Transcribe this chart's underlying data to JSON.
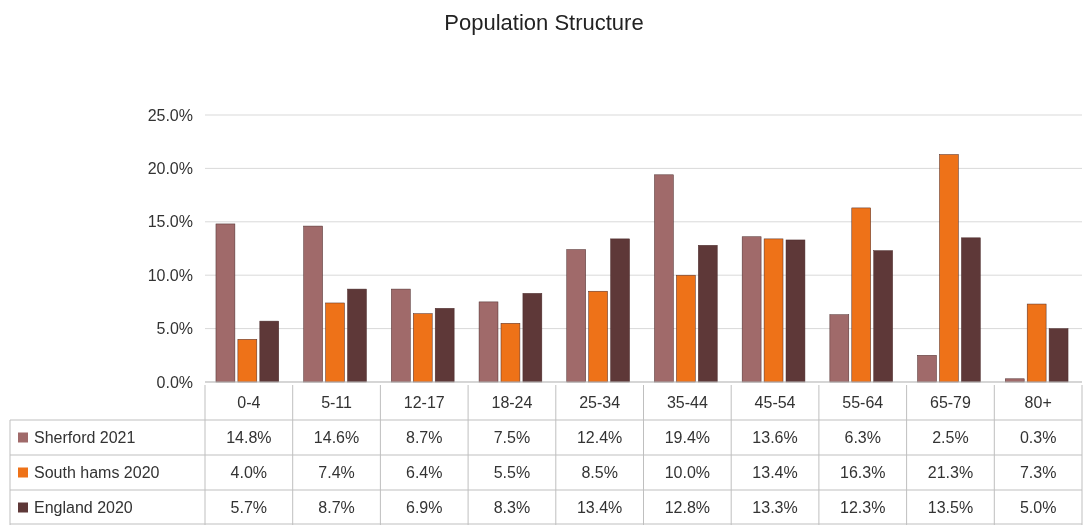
{
  "chart_data": {
    "type": "bar",
    "title": "Population Structure",
    "categories": [
      "0-4",
      "5-11",
      "12-17",
      "18-24",
      "25-34",
      "35-44",
      "45-54",
      "55-64",
      "65-79",
      "80+"
    ],
    "series": [
      {
        "name": "Sherford 2021",
        "color": "#a06a6a",
        "values": [
          14.8,
          14.6,
          8.7,
          7.5,
          12.4,
          19.4,
          13.6,
          6.3,
          2.5,
          0.3
        ],
        "value_labels": [
          "14.8%",
          "14.6%",
          "8.7%",
          "7.5%",
          "12.4%",
          "19.4%",
          "13.6%",
          "6.3%",
          "2.5%",
          "0.3%"
        ]
      },
      {
        "name": "South hams 2020",
        "color": "#ee7218",
        "values": [
          4.0,
          7.4,
          6.4,
          5.5,
          8.5,
          10.0,
          13.4,
          16.3,
          21.3,
          7.3
        ],
        "value_labels": [
          "4.0%",
          "7.4%",
          "6.4%",
          "5.5%",
          "8.5%",
          "10.0%",
          "13.4%",
          "16.3%",
          "21.3%",
          "7.3%"
        ]
      },
      {
        "name": "England 2020",
        "color": "#5e3838",
        "values": [
          5.7,
          8.7,
          6.9,
          8.3,
          13.4,
          12.8,
          13.3,
          12.3,
          13.5,
          5.0
        ],
        "value_labels": [
          "5.7%",
          "8.7%",
          "6.9%",
          "8.3%",
          "13.4%",
          "12.8%",
          "13.3%",
          "12.3%",
          "13.5%",
          "5.0%"
        ]
      }
    ],
    "ylim": [
      0,
      25
    ],
    "yticks": [
      {
        "value": 0,
        "label": "0.0%"
      },
      {
        "value": 5,
        "label": "5.0%"
      },
      {
        "value": 10,
        "label": "10.0%"
      },
      {
        "value": 15,
        "label": "15.0%"
      },
      {
        "value": 20,
        "label": "20.0%"
      },
      {
        "value": 25,
        "label": "25.0%"
      }
    ],
    "grid": "y",
    "legend": "bottom"
  }
}
